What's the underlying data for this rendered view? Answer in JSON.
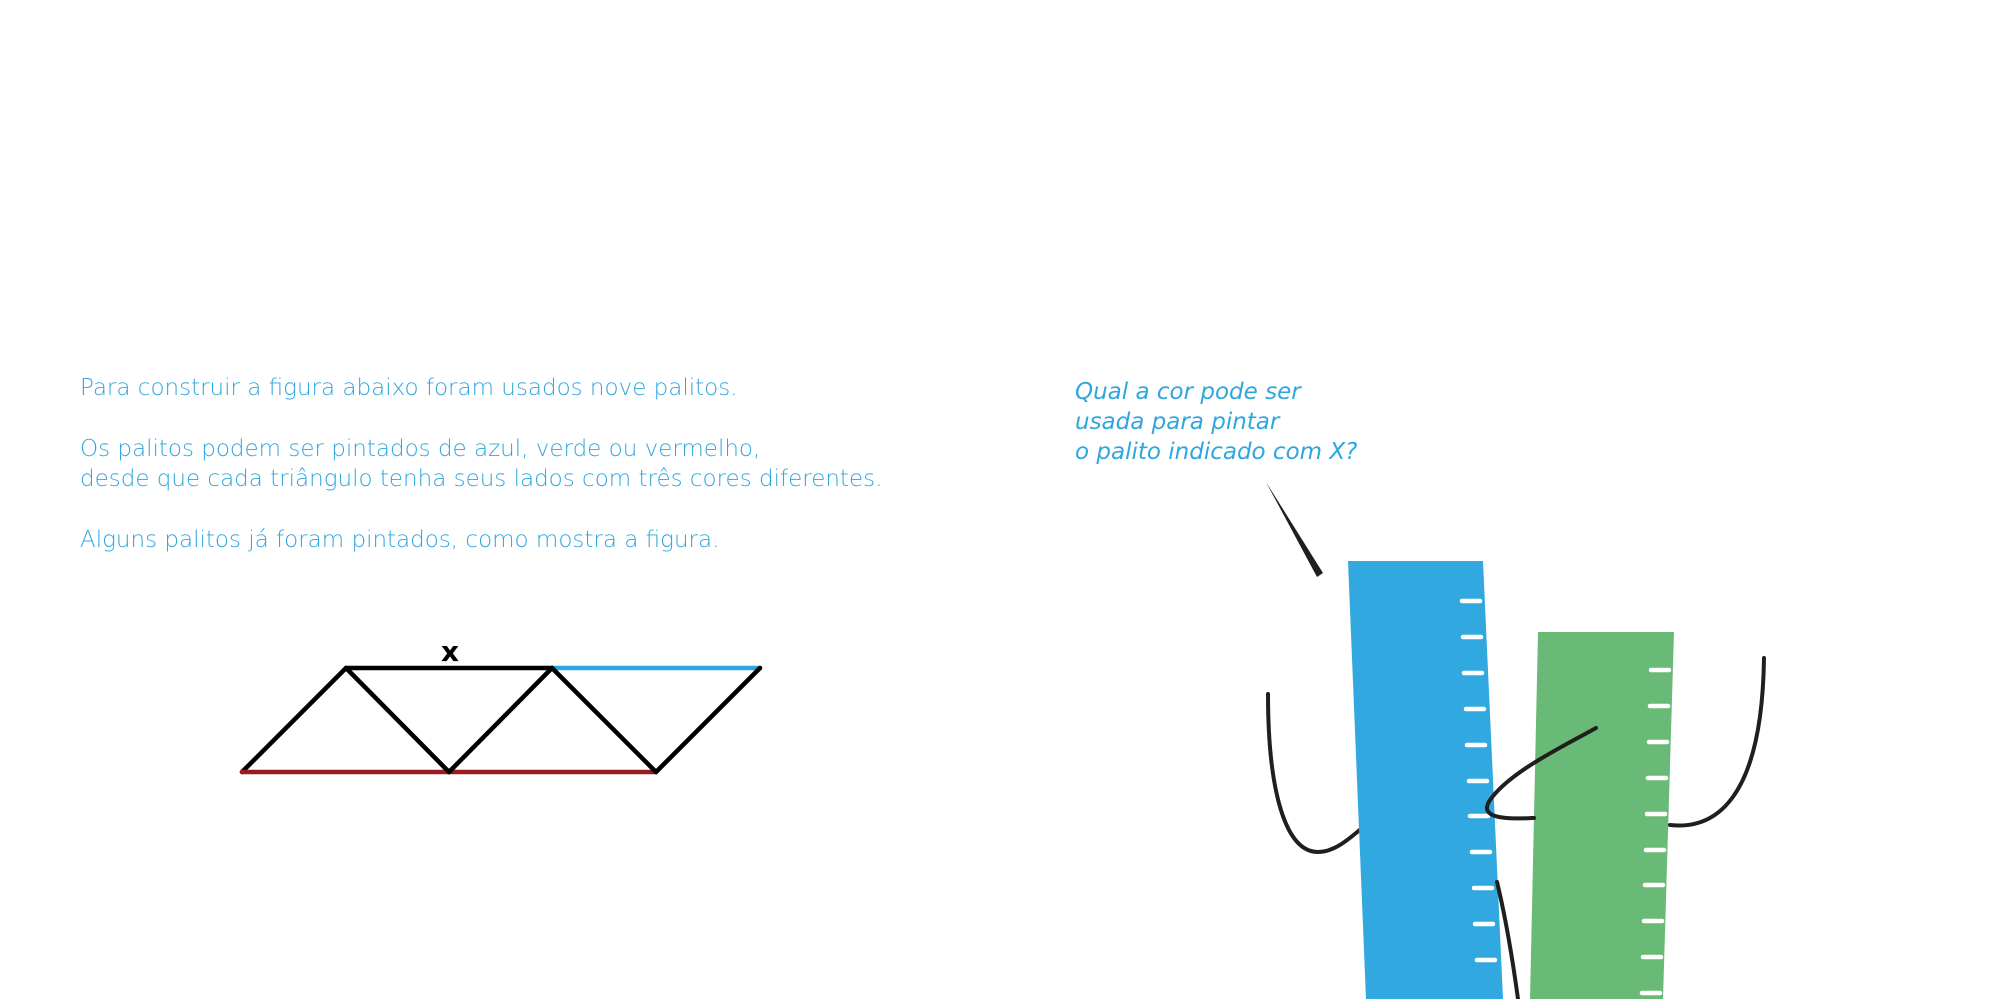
{
  "intro": {
    "line1": "Para construir a figura abaixo foram usados nove palitos.",
    "line2a": "Os palitos podem ser pintados de azul, verde ou vermelho,",
    "line2b": "desde que cada triângulo tenha seus lados com três cores diferentes.",
    "line3": "Alguns palitos já foram pintados, como mostra a figura."
  },
  "question": {
    "lines": [
      "Qual a cor pode ser",
      "usada para pintar",
      "o palito indicado com X?"
    ]
  },
  "figure": {
    "x_label": "x",
    "colors": {
      "text": "#2fa6dd",
      "stick_black": "#000000",
      "stick_blue": "#2fa6dd",
      "stick_red": "#9a1c22",
      "ruler_blue": "#31a8df",
      "ruler_green": "#6aba77",
      "line_dark": "#1f1f1f"
    },
    "painted_sticks": [
      {
        "stick": "top-right",
        "color": "blue"
      },
      {
        "stick": "bottom-left",
        "color": "red"
      },
      {
        "stick": "bottom-right",
        "color": "red"
      }
    ],
    "unpainted_sticks": 6,
    "marked_stick": "top-left"
  }
}
